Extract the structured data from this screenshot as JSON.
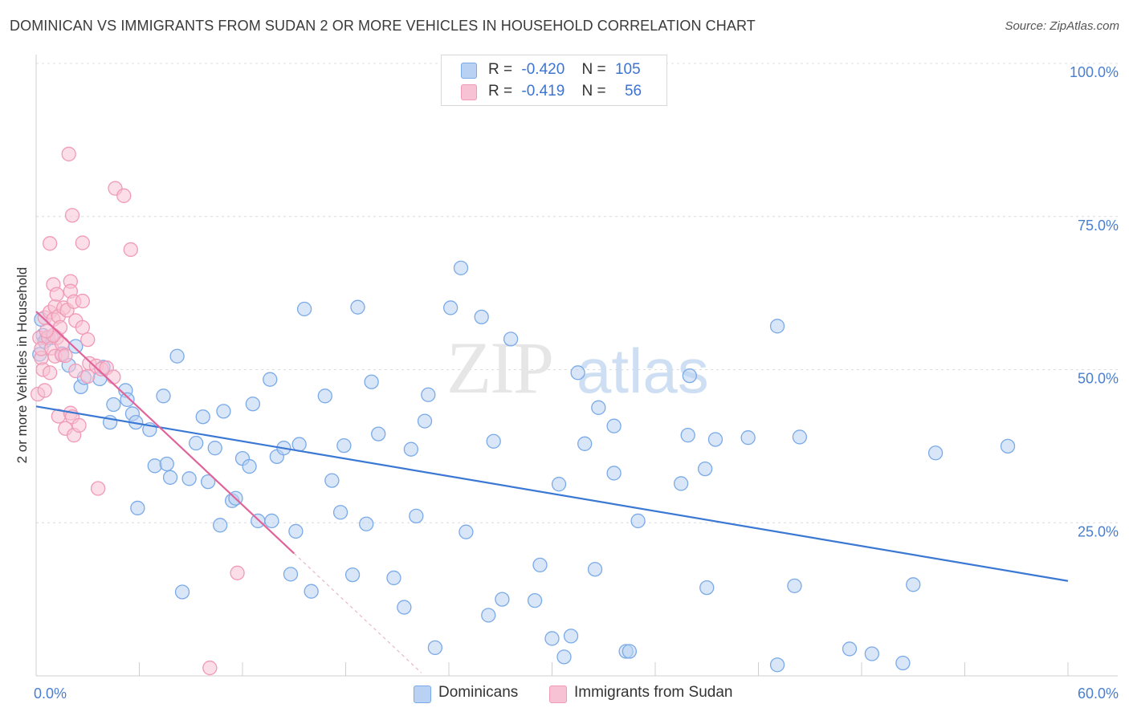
{
  "chart_data": {
    "type": "scatter",
    "title": "DOMINICAN VS IMMIGRANTS FROM SUDAN 2 OR MORE VEHICLES IN HOUSEHOLD CORRELATION CHART",
    "source": "Source: ZipAtlas.com",
    "xlabel": "",
    "ylabel": "2 or more Vehicles in Household",
    "xlim": [
      0,
      60
    ],
    "ylim": [
      0,
      100
    ],
    "x_tick_labels": [
      {
        "value": 0,
        "label": "0.0%"
      },
      {
        "value": 60,
        "label": "60.0%"
      }
    ],
    "y_tick_labels": [
      {
        "value": 100,
        "label": "100.0%"
      },
      {
        "value": 75,
        "label": "75.0%"
      },
      {
        "value": 50,
        "label": "50.0%"
      },
      {
        "value": 25,
        "label": "25.0%"
      }
    ],
    "x_minor_ticks": [
      0,
      6,
      12,
      18,
      24,
      30,
      36,
      42,
      48,
      54,
      60
    ],
    "grid": true,
    "watermark": "ZIPatlas",
    "legend": {
      "position": "top-center",
      "entries": [
        {
          "series": "Dominicans",
          "r_label": "R =",
          "r_value": "-0.420",
          "n_label": "N =",
          "n_value": "105"
        },
        {
          "series": "Immigrants from Sudan",
          "r_label": "R =",
          "r_value": "-0.419",
          "n_label": "N =",
          "n_value": "56"
        }
      ]
    },
    "series": [
      {
        "name": "Dominicans",
        "color": "#7aaae8",
        "fill": "#b9d2f3",
        "line_color": "#3a78d4",
        "trend": {
          "x0": 0,
          "y0": 44.0,
          "x1": 60,
          "y1": 15.5
        },
        "points": [
          [
            0.3,
            58.2
          ],
          [
            0.4,
            55.6
          ],
          [
            0.9,
            55.2
          ],
          [
            0.6,
            55.1
          ],
          [
            1.5,
            52.6
          ],
          [
            1.9,
            50.7
          ],
          [
            2.3,
            53.8
          ],
          [
            2.6,
            47.2
          ],
          [
            2.8,
            48.7
          ],
          [
            3.7,
            48.5
          ],
          [
            3.9,
            50.4
          ],
          [
            4.3,
            41.4
          ],
          [
            4.5,
            44.3
          ],
          [
            5.2,
            46.6
          ],
          [
            5.3,
            45.1
          ],
          [
            5.6,
            42.8
          ],
          [
            5.8,
            41.4
          ],
          [
            5.9,
            27.4
          ],
          [
            6.6,
            40.2
          ],
          [
            6.9,
            34.3
          ],
          [
            7.4,
            45.7
          ],
          [
            7.6,
            34.6
          ],
          [
            7.8,
            32.4
          ],
          [
            8.2,
            52.2
          ],
          [
            8.5,
            13.7
          ],
          [
            8.9,
            32.2
          ],
          [
            9.3,
            38.0
          ],
          [
            9.7,
            42.3
          ],
          [
            10.0,
            31.7
          ],
          [
            10.4,
            37.2
          ],
          [
            10.7,
            24.6
          ],
          [
            10.9,
            43.2
          ],
          [
            11.4,
            28.6
          ],
          [
            11.6,
            29.0
          ],
          [
            12.0,
            35.5
          ],
          [
            12.4,
            34.2
          ],
          [
            12.6,
            44.4
          ],
          [
            12.9,
            25.3
          ],
          [
            13.6,
            48.4
          ],
          [
            13.7,
            25.3
          ],
          [
            14.0,
            35.8
          ],
          [
            14.4,
            37.2
          ],
          [
            14.8,
            16.6
          ],
          [
            15.1,
            23.6
          ],
          [
            15.3,
            37.8
          ],
          [
            15.6,
            59.9
          ],
          [
            16.0,
            13.8
          ],
          [
            16.8,
            45.7
          ],
          [
            17.2,
            31.9
          ],
          [
            17.7,
            26.7
          ],
          [
            17.9,
            37.6
          ],
          [
            18.4,
            16.5
          ],
          [
            18.7,
            60.2
          ],
          [
            19.2,
            24.8
          ],
          [
            19.5,
            48.0
          ],
          [
            19.9,
            39.5
          ],
          [
            20.8,
            16.0
          ],
          [
            21.4,
            11.2
          ],
          [
            21.8,
            37.0
          ],
          [
            22.1,
            26.1
          ],
          [
            22.6,
            41.6
          ],
          [
            22.8,
            45.9
          ],
          [
            23.2,
            4.6
          ],
          [
            24.1,
            60.1
          ],
          [
            24.7,
            66.6
          ],
          [
            25.0,
            23.5
          ],
          [
            25.9,
            58.6
          ],
          [
            26.3,
            9.9
          ],
          [
            26.6,
            38.3
          ],
          [
            27.1,
            12.5
          ],
          [
            27.6,
            55.0
          ],
          [
            29.0,
            12.3
          ],
          [
            29.3,
            18.1
          ],
          [
            30.0,
            6.1
          ],
          [
            30.4,
            31.3
          ],
          [
            30.7,
            3.1
          ],
          [
            31.1,
            6.5
          ],
          [
            31.5,
            49.5
          ],
          [
            31.9,
            37.9
          ],
          [
            32.5,
            17.4
          ],
          [
            32.7,
            43.8
          ],
          [
            33.6,
            40.8
          ],
          [
            33.6,
            33.1
          ],
          [
            34.3,
            4.0
          ],
          [
            34.5,
            4.0
          ],
          [
            35.0,
            25.3
          ],
          [
            37.5,
            31.4
          ],
          [
            37.9,
            39.3
          ],
          [
            38.0,
            49.0
          ],
          [
            38.9,
            33.8
          ],
          [
            39.0,
            14.4
          ],
          [
            39.5,
            38.6
          ],
          [
            41.4,
            38.9
          ],
          [
            43.1,
            57.1
          ],
          [
            43.1,
            1.8
          ],
          [
            44.1,
            14.7
          ],
          [
            44.4,
            39.0
          ],
          [
            47.3,
            4.4
          ],
          [
            48.6,
            3.6
          ],
          [
            50.4,
            2.1
          ],
          [
            51.0,
            14.9
          ],
          [
            52.3,
            36.4
          ],
          [
            56.5,
            37.5
          ],
          [
            0.5,
            54.6
          ],
          [
            0.2,
            52.5
          ]
        ]
      },
      {
        "name": "Immigrants from Sudan",
        "color": "#f09ab7",
        "fill": "#f7c2d3",
        "line_color": "#e0649a",
        "trend": {
          "x0": 0,
          "y0": 59.5,
          "x1": 15.0,
          "y1": 20.0
        },
        "trend_ext": {
          "x0": 15.0,
          "y0": 20.0,
          "x1": 22.4,
          "y1": 0.5
        },
        "points": [
          [
            0.1,
            46.0
          ],
          [
            0.2,
            55.2
          ],
          [
            0.3,
            51.9
          ],
          [
            0.3,
            53.4
          ],
          [
            0.4,
            50.0
          ],
          [
            0.5,
            46.6
          ],
          [
            0.5,
            58.5
          ],
          [
            0.7,
            55.3
          ],
          [
            0.8,
            70.6
          ],
          [
            0.8,
            49.5
          ],
          [
            0.8,
            59.4
          ],
          [
            0.9,
            53.5
          ],
          [
            1.0,
            58.2
          ],
          [
            1.0,
            63.9
          ],
          [
            1.1,
            52.2
          ],
          [
            1.1,
            60.3
          ],
          [
            1.2,
            62.3
          ],
          [
            1.2,
            55.2
          ],
          [
            1.3,
            42.4
          ],
          [
            1.3,
            58.7
          ],
          [
            1.4,
            56.9
          ],
          [
            1.5,
            52.4
          ],
          [
            1.5,
            54.2
          ],
          [
            1.6,
            60.1
          ],
          [
            1.7,
            52.3
          ],
          [
            1.7,
            40.4
          ],
          [
            1.8,
            59.7
          ],
          [
            1.9,
            85.2
          ],
          [
            2.0,
            64.4
          ],
          [
            2.0,
            62.8
          ],
          [
            2.0,
            42.9
          ],
          [
            2.1,
            75.2
          ],
          [
            2.1,
            42.3
          ],
          [
            2.2,
            39.3
          ],
          [
            2.2,
            61.1
          ],
          [
            2.3,
            58.0
          ],
          [
            2.3,
            49.8
          ],
          [
            2.5,
            40.9
          ],
          [
            2.7,
            61.2
          ],
          [
            2.7,
            56.9
          ],
          [
            2.7,
            70.7
          ],
          [
            3.0,
            54.9
          ],
          [
            3.1,
            51.0
          ],
          [
            3.5,
            50.6
          ],
          [
            3.6,
            30.6
          ],
          [
            3.8,
            50.1
          ],
          [
            4.1,
            50.3
          ],
          [
            4.5,
            48.8
          ],
          [
            4.6,
            79.6
          ],
          [
            5.1,
            78.4
          ],
          [
            5.5,
            69.6
          ],
          [
            10.1,
            1.3
          ],
          [
            11.7,
            16.8
          ],
          [
            3.0,
            48.9
          ],
          [
            1.0,
            55.6
          ],
          [
            0.6,
            56.3
          ]
        ]
      }
    ]
  }
}
